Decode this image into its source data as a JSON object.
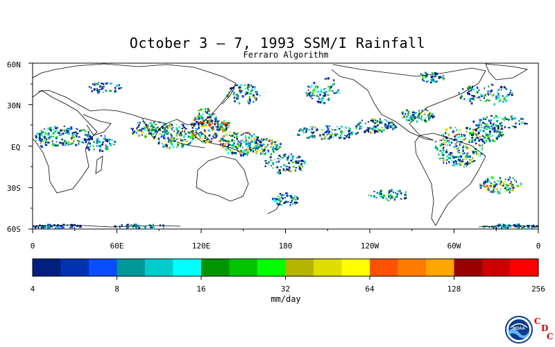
{
  "map": {
    "title": "October 3 – 7, 1993 SSM/I Rainfall",
    "subtitle": "Ferraro Algorithm",
    "lat_labels": [
      "60N",
      "30N",
      "EQ",
      "30S",
      "60S"
    ],
    "lon_labels": [
      "0",
      "60E",
      "120E",
      "180",
      "120W",
      "60W",
      "0"
    ],
    "projection": "equirectangular, 0 to 360 longitude, 60S to 60N latitude",
    "features": [
      "land outlines (black)",
      "scattered rainfall pixels over tropics and mid-latitude storm tracks"
    ]
  },
  "colorbar": {
    "units": "mm/day",
    "tick_labels": [
      "4",
      "8",
      "16",
      "32",
      "64",
      "128",
      "256"
    ],
    "scale": "log2",
    "colors": [
      "#001f7f",
      "#0033b3",
      "#0a4cff",
      "#00999a",
      "#00cccc",
      "#00ffff",
      "#009400",
      "#00c400",
      "#00ff00",
      "#b5b500",
      "#dede00",
      "#ffff00",
      "#ff5200",
      "#ff7c00",
      "#ffa500",
      "#990000",
      "#cc0000",
      "#ff0000"
    ]
  },
  "logo": {
    "name": "noaa-logo",
    "text": "NOAA",
    "org_letters": [
      "C",
      "D",
      "C"
    ]
  }
}
